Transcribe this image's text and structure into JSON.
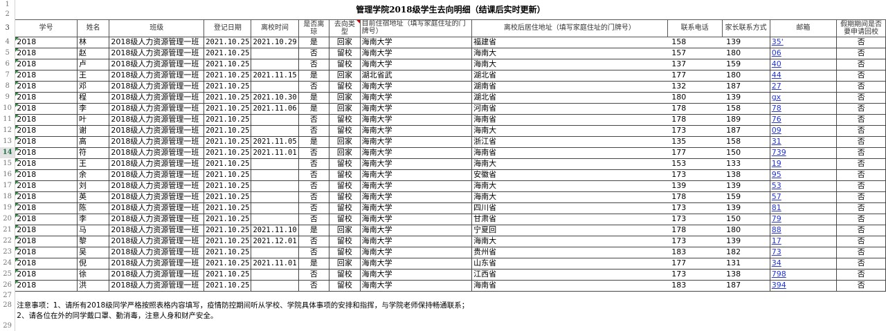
{
  "title": "管理学院2018级学生去向明细（结课后实时更新）",
  "headers": [
    "学号",
    "姓名",
    "班级",
    "登记日期",
    "离校时间",
    "是否离琼",
    "去向类型",
    "目前住宿地址（填写家庭住址的门牌号）",
    "离校后居住地址（填写家庭住址的门牌号）",
    "联系电话",
    "家长联系方式",
    "邮箱",
    "假期期间是否要申请回校"
  ],
  "row_numbers": [
    "1",
    "2",
    "3",
    "4",
    "5",
    "6",
    "7",
    "8",
    "9",
    "10",
    "11",
    "12",
    "13",
    "14",
    "15",
    "16",
    "17",
    "18",
    "19",
    "20",
    "21",
    "22",
    "23",
    "24",
    "25",
    "26",
    "27",
    "28",
    "29"
  ],
  "selected_row": "14",
  "rows": [
    [
      "2018",
      "林",
      "2018级人力资源管理一班",
      "2021.10.25",
      "2021.10.29",
      "是",
      "回家",
      "海南大学",
      "福建省",
      "158",
      "139",
      "35'",
      "否"
    ],
    [
      "2018",
      "赵",
      "2018级人力资源管理一班",
      "2021.10.25",
      "",
      "否",
      "留校",
      "海南大学",
      "海南大",
      "157",
      "180",
      "06",
      "否"
    ],
    [
      "2018",
      "卢",
      "2018级人力资源管理一班",
      "2021.10.25",
      "",
      "否",
      "留校",
      "海南大学",
      "海南大",
      "137",
      "159",
      "40",
      "否"
    ],
    [
      "2018",
      "王",
      "2018级人力资源管理一班",
      "2021.10.25",
      "2021.11.15",
      "是",
      "回家",
      "湖北省武",
      "湖北省",
      "177",
      "180",
      "44",
      "否"
    ],
    [
      "2018",
      "邓",
      "2018级人力资源管理一班",
      "2021.10.25",
      "",
      "否",
      "留校",
      "海南大学",
      "湖南省",
      "132",
      "187",
      "27",
      "否"
    ],
    [
      "2018",
      "程",
      "2018级人力资源管理一班",
      "2021.10.25",
      "2021.10.30",
      "是",
      "回家",
      "海南大学",
      "湖北省",
      "180",
      "139",
      "gx",
      "否"
    ],
    [
      "2018",
      "李",
      "2018级人力资源管理一班",
      "2021.10.25",
      "2021.11.06",
      "是",
      "回家",
      "海南大学",
      "河南省",
      "178",
      "158",
      "78",
      "否"
    ],
    [
      "2018",
      "叶",
      "2018级人力资源管理一班",
      "2021.10.25",
      "",
      "否",
      "留校",
      "海南大学",
      "海南省",
      "178",
      "189",
      "76",
      "否"
    ],
    [
      "2018",
      "谢",
      "2018级人力资源管理一班",
      "2021.10.25",
      "",
      "否",
      "留校",
      "海南大学",
      "海南大",
      "173",
      "187",
      "09",
      "否"
    ],
    [
      "2018",
      "高",
      "2018级人力资源管理一班",
      "2021.10.25",
      "2021.11.05",
      "是",
      "回家",
      "海南大学",
      "浙江省",
      "135",
      "158",
      "31",
      "否"
    ],
    [
      "2018",
      "符",
      "2018级人力资源管理一班",
      "2021.10.25",
      "2021.11.01",
      "否",
      "回家",
      "海南大学",
      "海南省",
      "177",
      "150",
      "739",
      "否"
    ],
    [
      "2018",
      "王",
      "2018级人力资源管理一班",
      "2021.10.25",
      "",
      "否",
      "留校",
      "海南大学",
      "海南大",
      "153",
      "133",
      "19",
      "否"
    ],
    [
      "2018",
      "余",
      "2018级人力资源管理一班",
      "2021.10.25",
      "",
      "否",
      "留校",
      "海南大学",
      "安徽省",
      "173",
      "138",
      "95",
      "否"
    ],
    [
      "2018",
      "刘",
      "2018级人力资源管理一班",
      "2021.10.25",
      "",
      "否",
      "留校",
      "海南大学",
      "海南大",
      "139",
      "139",
      "53",
      "否"
    ],
    [
      "2018",
      "英",
      "2018级人力资源管理一班",
      "2021.10.25",
      "",
      "否",
      "留校",
      "海南大学",
      "海南大",
      "178",
      "159",
      "57",
      "否"
    ],
    [
      "2018",
      "陈",
      "2018级人力资源管理一班",
      "2021.10.25",
      "",
      "否",
      "留校",
      "海南大学",
      "四川省",
      "173",
      "139",
      "81",
      "否"
    ],
    [
      "2018",
      "李",
      "2018级人力资源管理一班",
      "2021.10.25",
      "",
      "否",
      "留校",
      "海南大学",
      "甘肃省",
      "173",
      "150",
      "79",
      "否"
    ],
    [
      "2018",
      "马",
      "2018级人力资源管理一班",
      "2021.10.25",
      "2021.11.10",
      "是",
      "回家",
      "海南大学",
      "宁夏回",
      "178",
      "180",
      "88",
      "否"
    ],
    [
      "2018",
      "黎",
      "2018级人力资源管理一班",
      "2021.10.25",
      "2021.12.01",
      "否",
      "留校",
      "海南大学",
      "海南大",
      "173",
      "139",
      "17",
      "否"
    ],
    [
      "2018",
      "吴",
      "2018级人力资源管理一班",
      "2021.10.25",
      "",
      "否",
      "留校",
      "海南大学",
      "贵州省",
      "183",
      "182",
      "73",
      "否"
    ],
    [
      "2018",
      "倪",
      "2018级人力资源管理一班",
      "2021.10.25",
      "2021.11.01",
      "是",
      "回家",
      "海南大学",
      "山东省",
      "177",
      "131",
      "34",
      "否"
    ],
    [
      "2018",
      "徐",
      "2018级人力资源管理一班",
      "2021.10.25",
      "",
      "否",
      "留校",
      "海南大学",
      "江西省",
      "173",
      "138",
      "798",
      "否"
    ],
    [
      "2018",
      "洪",
      "2018级人力资源管理一班",
      "2021.10.25",
      "",
      "否",
      "留校",
      "海南大学",
      "海南省",
      "183",
      "187",
      "394",
      "否"
    ]
  ],
  "notes": {
    "line1": "注意事项：1、请所有2018级同学严格按照表格内容填写，疫情防控期间听从学校、学院具体事项的安排和指挥，与学院老师保持畅通联系；",
    "line2": "2、请各位在外的同学戴口罩、勤消毒，注意人身和财产安全。"
  },
  "colors": {
    "link": "#2233dd",
    "selected_row_header": "#217346",
    "comment_marker": "#dd0000"
  }
}
